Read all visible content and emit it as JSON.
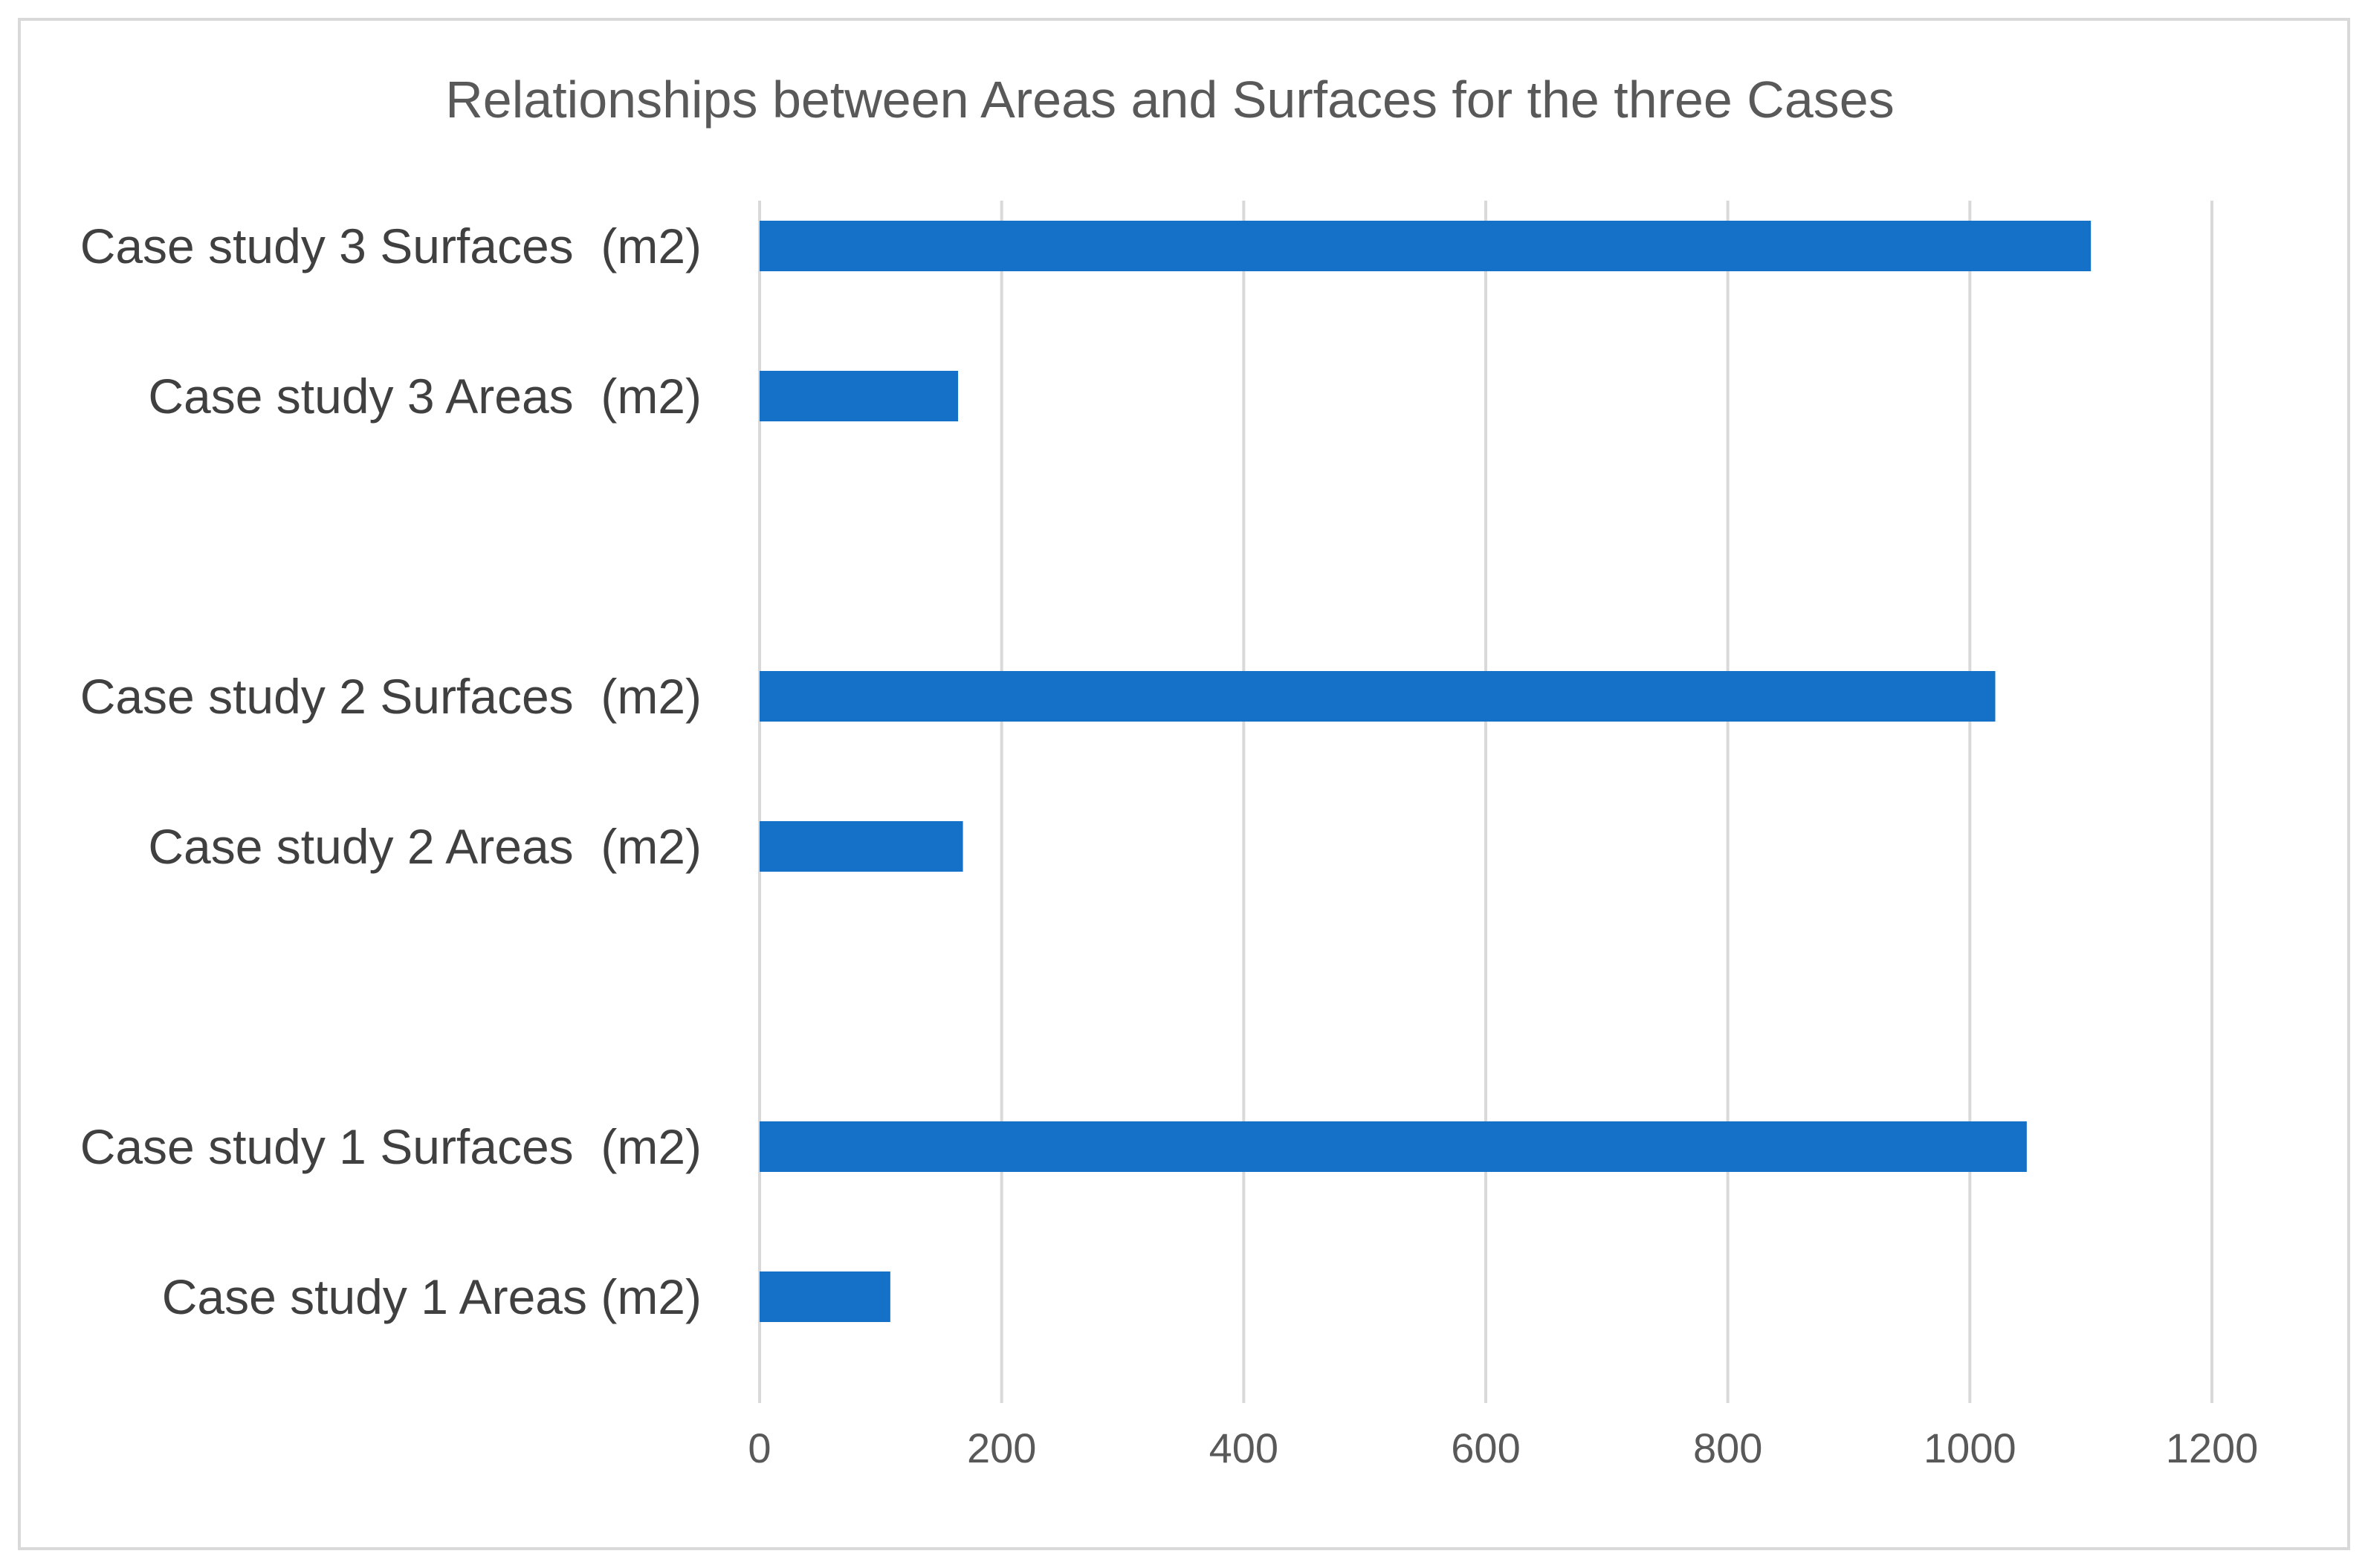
{
  "chart_data": {
    "type": "bar",
    "orientation": "horizontal",
    "title": "Relationships between Areas and Surfaces for the three Cases",
    "categories": [
      "Case study 1 Areas (m2)",
      "Case study 1 Surfaces  (m2)",
      "",
      "Case study 2 Areas  (m2)",
      "Case study 2 Surfaces  (m2)",
      "",
      "Case study 3 Areas  (m2)",
      "Case study 3 Surfaces  (m2)"
    ],
    "values": [
      108,
      1047,
      null,
      168,
      1021,
      null,
      164,
      1100
    ],
    "xlim": [
      0,
      1200
    ],
    "xticks": [
      0,
      200,
      400,
      600,
      800,
      1000,
      1200
    ],
    "xtick_labels": [
      "0",
      "200",
      "400",
      "600",
      "800",
      "1000",
      "1200"
    ],
    "grid": "vertical",
    "legend": "none",
    "bar_color": "#1570C8"
  }
}
